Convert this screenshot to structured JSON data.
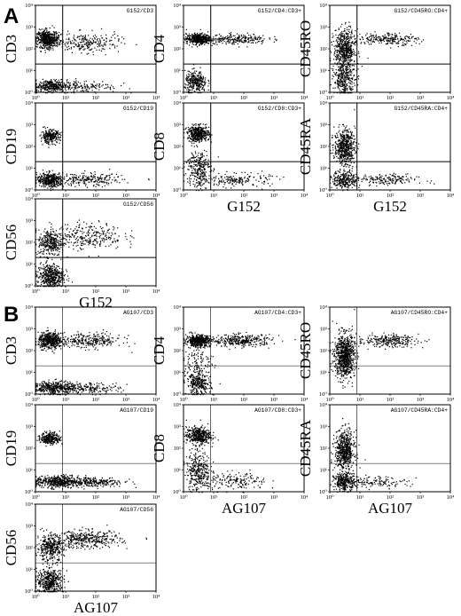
{
  "panels": [
    {
      "label": "A"
    },
    {
      "label": "B"
    }
  ],
  "chart_data": [
    {
      "type": "scatter",
      "panel": "A",
      "title": "G152/CD3",
      "ylabel": "CD3",
      "xlabel": "",
      "x_ticks": [
        "10⁰",
        "10¹",
        "10²",
        "10³",
        "10⁴"
      ],
      "y_ticks": [
        "10⁰",
        "10¹",
        "10²",
        "10³",
        "10⁴"
      ],
      "xlim": [
        1,
        10000
      ],
      "ylim": [
        1,
        10000
      ],
      "log_scale": true,
      "gate_x": 8,
      "gate_y": 20,
      "clusters": [
        {
          "x": 2.5,
          "y": 300,
          "count": 520,
          "sx": 0.18,
          "sy": 0.2
        },
        {
          "x": 50,
          "y": 200,
          "count": 240,
          "sx": 0.55,
          "sy": 0.22
        },
        {
          "x": 3,
          "y": 2,
          "count": 320,
          "sx": 0.28,
          "sy": 0.15
        },
        {
          "x": 40,
          "y": 2,
          "count": 150,
          "sx": 0.55,
          "sy": 0.14
        }
      ]
    },
    {
      "type": "scatter",
      "panel": "A",
      "title": "G152/CD4:CD3+",
      "ylabel": "CD4",
      "xlabel": "",
      "x_ticks": [
        "10⁰",
        "10¹",
        "10²",
        "10³",
        "10⁴"
      ],
      "y_ticks": [
        "10⁰",
        "10¹",
        "10²",
        "10³",
        "10⁴"
      ],
      "xlim": [
        1,
        10000
      ],
      "ylim": [
        1,
        10000
      ],
      "log_scale": true,
      "gate_x": 8,
      "gate_y": 20,
      "clusters": [
        {
          "x": 3,
          "y": 300,
          "count": 480,
          "sx": 0.2,
          "sy": 0.12
        },
        {
          "x": 60,
          "y": 300,
          "count": 230,
          "sx": 0.5,
          "sy": 0.12
        },
        {
          "x": 2.5,
          "y": 3,
          "count": 300,
          "sx": 0.18,
          "sy": 0.25
        }
      ]
    },
    {
      "type": "scatter",
      "panel": "A",
      "title": "G152/CD45RO:CD4+",
      "ylabel": "CD45RO",
      "xlabel": "",
      "x_ticks": [
        "10⁰",
        "10¹",
        "10²",
        "10³",
        "10⁴"
      ],
      "y_ticks": [
        "10⁰",
        "10¹",
        "10²",
        "10³",
        "10⁴"
      ],
      "xlim": [
        1,
        10000
      ],
      "ylim": [
        1,
        10000
      ],
      "log_scale": true,
      "gate_x": 8,
      "gate_y": 20,
      "clusters": [
        {
          "x": 3,
          "y": 100,
          "count": 550,
          "sx": 0.18,
          "sy": 0.45
        },
        {
          "x": 3,
          "y": 4,
          "count": 300,
          "sx": 0.18,
          "sy": 0.35
        },
        {
          "x": 80,
          "y": 300,
          "count": 220,
          "sx": 0.5,
          "sy": 0.14
        }
      ]
    },
    {
      "type": "scatter",
      "panel": "A",
      "title": "G152/CD19",
      "ylabel": "CD19",
      "xlabel": "",
      "x_ticks": [
        "10⁰",
        "10¹",
        "10²",
        "10³",
        "10⁴"
      ],
      "y_ticks": [
        "10⁰",
        "10¹",
        "10²",
        "10³",
        "10⁴"
      ],
      "xlim": [
        1,
        10000
      ],
      "ylim": [
        1,
        10000
      ],
      "log_scale": true,
      "gate_x": 8,
      "gate_y": 20,
      "clusters": [
        {
          "x": 3,
          "y": 300,
          "count": 260,
          "sx": 0.16,
          "sy": 0.15
        },
        {
          "x": 3,
          "y": 3,
          "count": 420,
          "sx": 0.22,
          "sy": 0.16
        },
        {
          "x": 60,
          "y": 3,
          "count": 220,
          "sx": 0.55,
          "sy": 0.15
        }
      ]
    },
    {
      "type": "scatter",
      "panel": "A",
      "title": "G152/CD8:CD3+",
      "ylabel": "CD8",
      "xlabel": "G152",
      "x_ticks": [
        "10⁰",
        "10¹",
        "10²",
        "10³",
        "10⁴"
      ],
      "y_ticks": [
        "10⁰",
        "10¹",
        "10²",
        "10³",
        "10⁴"
      ],
      "xlim": [
        1,
        10000
      ],
      "ylim": [
        1,
        10000
      ],
      "log_scale": true,
      "gate_x": 8,
      "gate_y": 20,
      "clusters": [
        {
          "x": 3,
          "y": 400,
          "count": 420,
          "sx": 0.18,
          "sy": 0.18
        },
        {
          "x": 3,
          "y": 10,
          "count": 280,
          "sx": 0.2,
          "sy": 0.45
        },
        {
          "x": 60,
          "y": 3,
          "count": 180,
          "sx": 0.55,
          "sy": 0.15
        }
      ]
    },
    {
      "type": "scatter",
      "panel": "A",
      "title": "G152/CD45RA:CD4+",
      "ylabel": "CD45RA",
      "xlabel": "G152",
      "x_ticks": [
        "10⁰",
        "10¹",
        "10²",
        "10³",
        "10⁴"
      ],
      "y_ticks": [
        "10⁰",
        "10¹",
        "10²",
        "10³",
        "10⁴"
      ],
      "xlim": [
        1,
        10000
      ],
      "ylim": [
        1,
        10000
      ],
      "log_scale": true,
      "gate_x": 8,
      "gate_y": 20,
      "clusters": [
        {
          "x": 3,
          "y": 100,
          "count": 550,
          "sx": 0.17,
          "sy": 0.4
        },
        {
          "x": 3,
          "y": 3,
          "count": 260,
          "sx": 0.2,
          "sy": 0.2
        },
        {
          "x": 60,
          "y": 3,
          "count": 180,
          "sx": 0.55,
          "sy": 0.13
        }
      ]
    },
    {
      "type": "scatter",
      "panel": "A",
      "title": "G152/CD56",
      "ylabel": "CD56",
      "xlabel": "G152",
      "x_ticks": [
        "10⁰",
        "10¹",
        "10²",
        "10³",
        "10⁴"
      ],
      "y_ticks": [
        "10⁰",
        "10¹",
        "10²",
        "10³",
        "10⁴"
      ],
      "xlim": [
        1,
        10000
      ],
      "ylim": [
        1,
        10000
      ],
      "log_scale": true,
      "gate_x": 8,
      "gate_y": 20,
      "clusters": [
        {
          "x": 3,
          "y": 100,
          "count": 300,
          "sx": 0.2,
          "sy": 0.3
        },
        {
          "x": 3,
          "y": 3,
          "count": 450,
          "sx": 0.22,
          "sy": 0.28
        },
        {
          "x": 50,
          "y": 200,
          "count": 300,
          "sx": 0.6,
          "sy": 0.3
        }
      ]
    },
    {
      "type": "scatter",
      "panel": "B",
      "title": "AG107/CD3",
      "ylabel": "CD3",
      "xlabel": "",
      "x_ticks": [
        "10⁰",
        "10¹",
        "10²",
        "10³",
        "10⁴"
      ],
      "y_ticks": [
        "10⁰",
        "10¹",
        "10²",
        "10³",
        "10⁴"
      ],
      "xlim": [
        1,
        10000
      ],
      "ylim": [
        1,
        10000
      ],
      "log_scale": true,
      "gate_x": 8,
      "gate_y": 20,
      "clusters": [
        {
          "x": 3,
          "y": 300,
          "count": 480,
          "sx": 0.2,
          "sy": 0.18
        },
        {
          "x": 60,
          "y": 300,
          "count": 280,
          "sx": 0.55,
          "sy": 0.18
        },
        {
          "x": 4,
          "y": 2,
          "count": 380,
          "sx": 0.35,
          "sy": 0.15
        },
        {
          "x": 60,
          "y": 2,
          "count": 180,
          "sx": 0.5,
          "sy": 0.12
        }
      ]
    },
    {
      "type": "scatter",
      "panel": "B",
      "title": "AG107/CD4:CD3+",
      "ylabel": "CD4",
      "xlabel": "",
      "x_ticks": [
        "10⁰",
        "10¹",
        "10²",
        "10³",
        "10⁴"
      ],
      "y_ticks": [
        "10⁰",
        "10¹",
        "10²",
        "10³",
        "10⁴"
      ],
      "xlim": [
        1,
        10000
      ],
      "ylim": [
        1,
        10000
      ],
      "log_scale": true,
      "gate_x": 8,
      "gate_y": 20,
      "clusters": [
        {
          "x": 3,
          "y": 300,
          "count": 500,
          "sx": 0.2,
          "sy": 0.13
        },
        {
          "x": 80,
          "y": 300,
          "count": 320,
          "sx": 0.5,
          "sy": 0.14
        },
        {
          "x": 3,
          "y": 3,
          "count": 280,
          "sx": 0.2,
          "sy": 0.25
        },
        {
          "x": 3,
          "y": 30,
          "count": 120,
          "sx": 0.25,
          "sy": 0.4
        }
      ]
    },
    {
      "type": "scatter",
      "panel": "B",
      "title": "AG107/CD45RO:CD4+",
      "ylabel": "CD45RO",
      "xlabel": "",
      "x_ticks": [
        "10⁰",
        "10¹",
        "10²",
        "10³",
        "10⁴"
      ],
      "y_ticks": [
        "10⁰",
        "10¹",
        "10²",
        "10³",
        "10⁴"
      ],
      "xlim": [
        1,
        10000
      ],
      "ylim": [
        1,
        10000
      ],
      "log_scale": true,
      "gate_x": 8,
      "gate_y": 20,
      "clusters": [
        {
          "x": 3,
          "y": 60,
          "count": 800,
          "sx": 0.17,
          "sy": 0.5
        },
        {
          "x": 80,
          "y": 300,
          "count": 260,
          "sx": 0.5,
          "sy": 0.14
        }
      ]
    },
    {
      "type": "scatter",
      "panel": "B",
      "title": "AG107/CD19",
      "ylabel": "CD19",
      "xlabel": "",
      "x_ticks": [
        "10⁰",
        "10¹",
        "10²",
        "10³",
        "10⁴"
      ],
      "y_ticks": [
        "10⁰",
        "10¹",
        "10²",
        "10³",
        "10⁴"
      ],
      "xlim": [
        1,
        10000
      ],
      "ylim": [
        1,
        10000
      ],
      "log_scale": true,
      "gate_x": 8,
      "gate_y": 20,
      "clusters": [
        {
          "x": 3,
          "y": 300,
          "count": 280,
          "sx": 0.16,
          "sy": 0.14
        },
        {
          "x": 5,
          "y": 3,
          "count": 450,
          "sx": 0.35,
          "sy": 0.14
        },
        {
          "x": 80,
          "y": 3,
          "count": 260,
          "sx": 0.5,
          "sy": 0.12
        }
      ]
    },
    {
      "type": "scatter",
      "panel": "B",
      "title": "AG107/CD8:CD3+",
      "ylabel": "CD8",
      "xlabel": "AG107",
      "x_ticks": [
        "10⁰",
        "10¹",
        "10²",
        "10³",
        "10⁴"
      ],
      "y_ticks": [
        "10⁰",
        "10¹",
        "10²",
        "10³",
        "10⁴"
      ],
      "xlim": [
        1,
        10000
      ],
      "ylim": [
        1,
        10000
      ],
      "log_scale": true,
      "gate_x": 8,
      "gate_y": 20,
      "clusters": [
        {
          "x": 3,
          "y": 400,
          "count": 420,
          "sx": 0.2,
          "sy": 0.2
        },
        {
          "x": 3,
          "y": 10,
          "count": 320,
          "sx": 0.2,
          "sy": 0.45
        },
        {
          "x": 60,
          "y": 3,
          "count": 160,
          "sx": 0.5,
          "sy": 0.2
        }
      ]
    },
    {
      "type": "scatter",
      "panel": "B",
      "title": "AG107/CD45RA:CD4+",
      "ylabel": "CD45RA",
      "xlabel": "AG107",
      "x_ticks": [
        "10⁰",
        "10¹",
        "10²",
        "10³",
        "10⁴"
      ],
      "y_ticks": [
        "10⁰",
        "10¹",
        "10²",
        "10³",
        "10⁴"
      ],
      "xlim": [
        1,
        10000
      ],
      "ylim": [
        1,
        10000
      ],
      "log_scale": true,
      "gate_x": 8,
      "gate_y": 20,
      "clusters": [
        {
          "x": 3,
          "y": 80,
          "count": 600,
          "sx": 0.16,
          "sy": 0.45
        },
        {
          "x": 3,
          "y": 3,
          "count": 300,
          "sx": 0.18,
          "sy": 0.2
        },
        {
          "x": 40,
          "y": 3,
          "count": 120,
          "sx": 0.5,
          "sy": 0.13
        }
      ]
    },
    {
      "type": "scatter",
      "panel": "B",
      "title": "AG107/CD56",
      "ylabel": "CD56",
      "xlabel": "AG107",
      "x_ticks": [
        "10⁰",
        "10¹",
        "10²",
        "10³",
        "10⁴"
      ],
      "y_ticks": [
        "10⁰",
        "10¹",
        "10²",
        "10³",
        "10⁴"
      ],
      "xlim": [
        1,
        10000
      ],
      "ylim": [
        1,
        10000
      ],
      "log_scale": true,
      "gate_x": 8,
      "gate_y": 20,
      "clusters": [
        {
          "x": 3,
          "y": 100,
          "count": 350,
          "sx": 0.22,
          "sy": 0.3
        },
        {
          "x": 3,
          "y": 3,
          "count": 450,
          "sx": 0.22,
          "sy": 0.28
        },
        {
          "x": 50,
          "y": 250,
          "count": 380,
          "sx": 0.55,
          "sy": 0.2
        }
      ]
    }
  ]
}
